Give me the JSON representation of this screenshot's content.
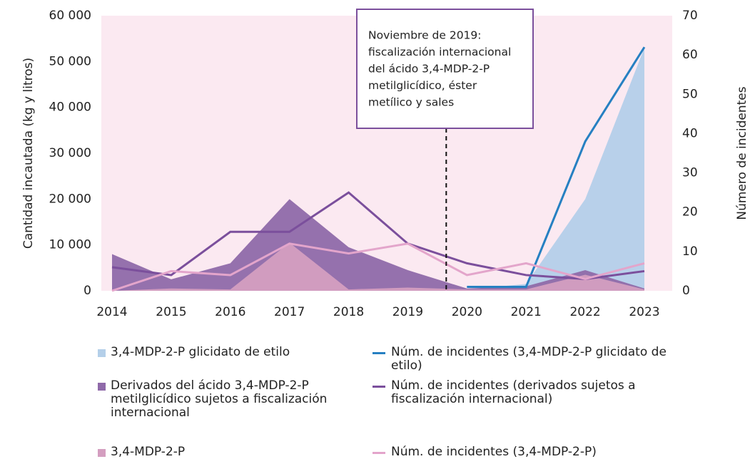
{
  "chart_data": {
    "type": "area-line",
    "categories": [
      "2014",
      "2015",
      "2016",
      "2017",
      "2018",
      "2019",
      "2020",
      "2021",
      "2022",
      "2023"
    ],
    "ylabel": "Cantidad incautada (kg y litros)",
    "y2label": "Número de incidentes",
    "ylim": [
      0,
      60000
    ],
    "yticks": [
      0,
      {
        "value": 10000,
        "label": "10 000"
      },
      {
        "value": 20000,
        "label": "20 000"
      },
      {
        "value": 30000,
        "label": "30 000"
      },
      {
        "value": 40000,
        "label": "40 000"
      },
      {
        "value": 50000,
        "label": "50 000"
      },
      {
        "value": 60000,
        "label": "60 000"
      }
    ],
    "y2lim": [
      0,
      70
    ],
    "y2ticks": [
      0,
      10,
      20,
      30,
      40,
      50,
      60,
      70
    ],
    "annotation": [
      "Noviembre de 2019:",
      "fiscalización internacional",
      "del ácido 3,4-MDP-2-P",
      "metilglicídico, éster",
      "metílico y sales"
    ],
    "series": [
      {
        "name": "3,4-MDP-2-P glicidato de etilo",
        "kind": "area",
        "color": "#b4cfe9",
        "values": [
          null,
          null,
          null,
          null,
          null,
          null,
          300,
          1500,
          20000,
          53000
        ]
      },
      {
        "name": "Derivados del ácido 3,4-MDP-2-P metilglicídico sujetos a fiscalización internacional",
        "kind": "area",
        "color": "#8f6aa9",
        "values": [
          8000,
          2500,
          6000,
          20000,
          9500,
          4500,
          500,
          1000,
          4500,
          500
        ]
      },
      {
        "name": "3,4-MDP-2-P",
        "kind": "area",
        "color": "#d49ec0",
        "values": [
          0,
          500,
          300,
          10500,
          300,
          700,
          300,
          300,
          3500,
          300
        ]
      },
      {
        "name": "Núm. de incidentes (3,4-MDP-2-P glicidato de etilo)",
        "kind": "line",
        "axis": "y2",
        "color": "#2680c2",
        "values": [
          null,
          null,
          null,
          null,
          null,
          null,
          1,
          1,
          38,
          62
        ]
      },
      {
        "name": "Núm. de incidentes (derivados sujetos a fiscalización internacional)",
        "kind": "line",
        "axis": "y2",
        "color": "#7b4f9c",
        "values": [
          6,
          4,
          15,
          15,
          25,
          12,
          7,
          4,
          3,
          5
        ]
      },
      {
        "name": "Núm. de incidentes (3,4-MDP-2-P)",
        "kind": "line",
        "axis": "y2",
        "color": "#e3a5cb",
        "values": [
          0,
          5,
          4,
          12,
          9.5,
          12,
          4,
          7,
          3,
          7
        ]
      }
    ]
  }
}
